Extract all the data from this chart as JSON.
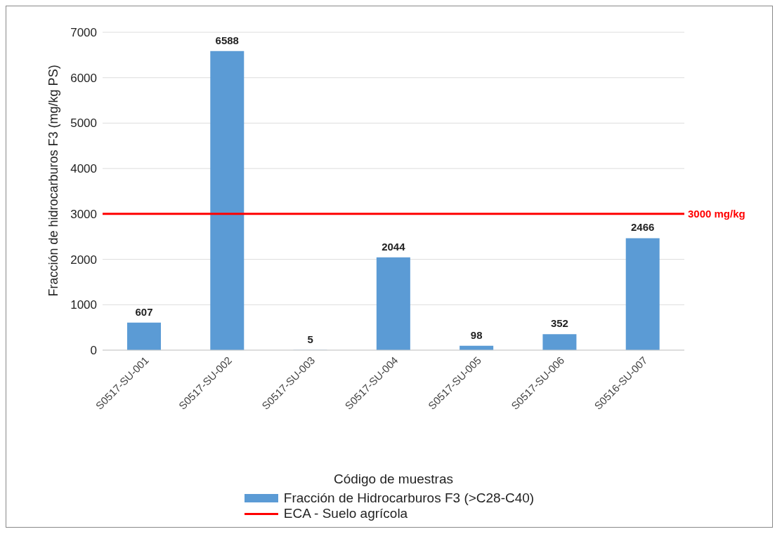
{
  "chart_data": {
    "type": "bar",
    "xlabel": "Código de muestras",
    "ylabel": "Fracción de hidrocarburos F3 (mg/kg PS)",
    "categories": [
      "S0517-SU-001",
      "S0517-SU-002",
      "S0517-SU-003",
      "S0517-SU-004",
      "S0517-SU-005",
      "S0517-SU-006",
      "S0516-SU-007"
    ],
    "series": [
      {
        "name": "Fracción de Hidrocarburos F3 (>C28-C40)",
        "color": "#5b9bd5",
        "values": [
          607,
          6588,
          5,
          2044,
          98,
          352,
          2466
        ]
      }
    ],
    "ylim": [
      0,
      7000
    ],
    "yticks": [
      0,
      1000,
      2000,
      3000,
      4000,
      5000,
      6000,
      7000
    ],
    "grid": "y",
    "data_labels": true,
    "legend": "bottom",
    "ref_lines": [
      {
        "axis": "y",
        "value": 3000,
        "label": "ECA - Suelo agrícola",
        "color": "#ff0000"
      }
    ],
    "annotations": [
      "3000 mg/kg"
    ]
  }
}
